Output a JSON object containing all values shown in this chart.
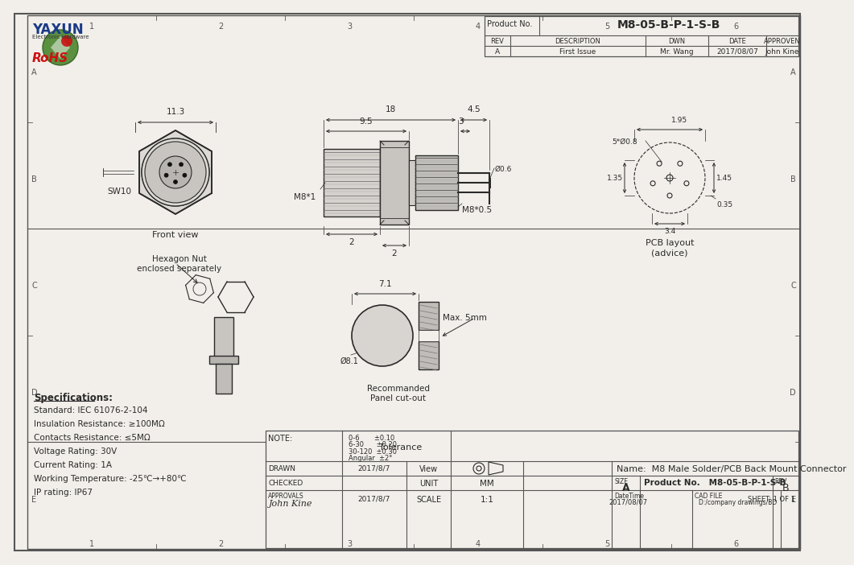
{
  "bg_color": "#f2efea",
  "border_color": "#555555",
  "line_color": "#2a2a2a",
  "dim_color": "#2a2a2a",
  "product_no": "M8-05-B-P-1-S-B",
  "rev": "A",
  "description": "First Issue",
  "dwn": "Mr. Wang",
  "date": "2017/08/07",
  "approven": "John Kine",
  "name": "M8 Male Solder/PCB Back Mount Connector",
  "product_no2": "M8-05-B-P-1-S-B",
  "datetime": "2017/08/07",
  "cad_file": "D:/company drawings/BD",
  "sheet": "SHEET: 1 OF 1",
  "scale": "1:1",
  "unit": "MM",
  "drawn": "2017/8/7",
  "approvals": "John Kine",
  "approvals_date": "2017/8/7",
  "specs": [
    "Specifications:",
    "Standard: IEC 61076-2-104",
    "Insulation Resistance: ≥100MΩ",
    "Contacts Resistance: ≤5MΩ",
    "Voltage Rating: 30V",
    "Current Rating: 1A",
    "Working Temperature: -25℃→+80℃",
    "IP rating: IP67"
  ],
  "tolerance_lines": [
    "0-6       ±0.10",
    "6-30      ±0.20",
    "30-120  ±0.30",
    "Angular  ±2°"
  ],
  "grid_cols": [
    "1",
    "2",
    "3",
    "4",
    "5",
    "6"
  ],
  "grid_rows": [
    "A",
    "B",
    "C",
    "D",
    "E"
  ]
}
